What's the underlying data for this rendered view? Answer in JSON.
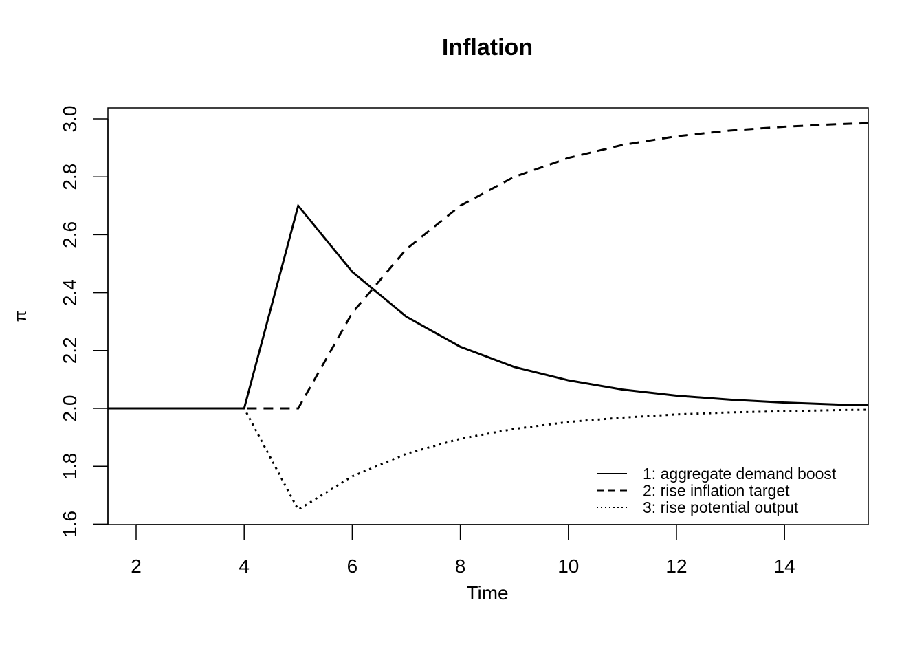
{
  "chart_data": {
    "type": "line",
    "title": "Inflation",
    "xlabel": "Time",
    "ylabel": "π",
    "xlim": [
      1.48,
      15.52
    ],
    "ylim": [
      1.6,
      3.04
    ],
    "x_ticks": [
      2,
      4,
      6,
      8,
      10,
      12,
      14
    ],
    "x_tick_labels": [
      "2",
      "4",
      "6",
      "8",
      "10",
      "12",
      "14"
    ],
    "y_ticks": [
      1.6,
      1.8,
      2.0,
      2.2,
      2.4,
      2.6,
      2.8,
      3.0
    ],
    "y_tick_labels": [
      "1.6",
      "1.8",
      "2.0",
      "2.2",
      "2.4",
      "2.6",
      "2.8",
      "3.0"
    ],
    "grid": false,
    "legend_position": "bottom-right",
    "x": [
      1,
      2,
      3,
      4,
      5,
      6,
      7,
      8,
      9,
      10,
      11,
      12,
      13,
      14,
      15,
      16
    ],
    "series": [
      {
        "name": "1: aggregate demand boost",
        "style": "solid",
        "values": [
          2.0,
          2.0,
          2.0,
          2.0,
          2.7,
          2.472,
          2.317,
          2.213,
          2.143,
          2.097,
          2.065,
          2.044,
          2.03,
          2.02,
          2.013,
          2.009
        ]
      },
      {
        "name": "2: rise inflation target",
        "style": "dashed",
        "values": [
          2.0,
          2.0,
          2.0,
          2.0,
          2.0,
          2.33,
          2.55,
          2.7,
          2.8,
          2.865,
          2.91,
          2.94,
          2.96,
          2.973,
          2.982,
          2.988
        ]
      },
      {
        "name": "3: rise potential output",
        "style": "dotted",
        "values": [
          2.0,
          2.0,
          2.0,
          2.0,
          1.65,
          1.765,
          1.843,
          1.895,
          1.929,
          1.953,
          1.968,
          1.979,
          1.986,
          1.99,
          1.994,
          1.996
        ]
      }
    ]
  }
}
